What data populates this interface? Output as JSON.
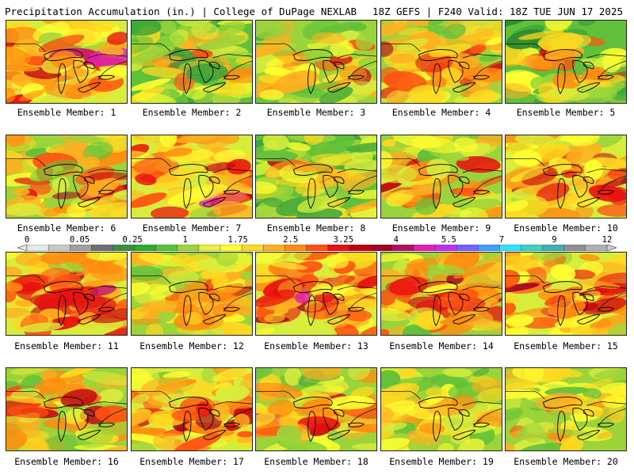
{
  "header": {
    "title": "Precipitation Accumulation (in.) | College of DuPage NEXLAB",
    "run_info": "18Z GEFS | F240 Valid: 18Z TUE JUN 17 2025"
  },
  "colorbar": {
    "ticks": [
      "0",
      "0.05",
      "0.25",
      "1",
      "1.75",
      "2.5",
      "3.25",
      "4",
      "5.5",
      "7",
      "9",
      "12"
    ],
    "colors": [
      "#e8e8e8",
      "#c8c8c8",
      "#a0a0a0",
      "#6e6e6e",
      "#3e8e3e",
      "#2faa2f",
      "#56c23a",
      "#9bd43a",
      "#e8f040",
      "#ffff30",
      "#ffd820",
      "#ffb020",
      "#ff8c10",
      "#ff5010",
      "#e81010",
      "#c00010",
      "#a00020",
      "#b01060",
      "#e020b0",
      "#c030f0",
      "#7860ff",
      "#40a0ff",
      "#30e0ff",
      "#40d0c0",
      "#40b0b0",
      "#909090",
      "#b0b0b0",
      "#d0d0d0"
    ]
  },
  "members": [
    {
      "label": "Ensemble Member: 1",
      "seed": 11,
      "bias": 0.78
    },
    {
      "label": "Ensemble Member: 2",
      "seed": 23,
      "bias": 0.48
    },
    {
      "label": "Ensemble Member: 3",
      "seed": 37,
      "bias": 0.55
    },
    {
      "label": "Ensemble Member: 4",
      "seed": 41,
      "bias": 0.62
    },
    {
      "label": "Ensemble Member: 5",
      "seed": 53,
      "bias": 0.42
    },
    {
      "label": "Ensemble Member: 6",
      "seed": 67,
      "bias": 0.66
    },
    {
      "label": "Ensemble Member: 7",
      "seed": 71,
      "bias": 0.8
    },
    {
      "label": "Ensemble Member: 8",
      "seed": 83,
      "bias": 0.44
    },
    {
      "label": "Ensemble Member: 9",
      "seed": 97,
      "bias": 0.62
    },
    {
      "label": "Ensemble Member: 10",
      "seed": 101,
      "bias": 0.74
    },
    {
      "label": "Ensemble Member: 11",
      "seed": 113,
      "bias": 0.76
    },
    {
      "label": "Ensemble Member: 12",
      "seed": 127,
      "bias": 0.64
    },
    {
      "label": "Ensemble Member: 13",
      "seed": 131,
      "bias": 0.82
    },
    {
      "label": "Ensemble Member: 14",
      "seed": 149,
      "bias": 0.68
    },
    {
      "label": "Ensemble Member: 15",
      "seed": 151,
      "bias": 0.74
    },
    {
      "label": "Ensemble Member: 16",
      "seed": 163,
      "bias": 0.66
    },
    {
      "label": "Ensemble Member: 17",
      "seed": 173,
      "bias": 0.7
    },
    {
      "label": "Ensemble Member: 18",
      "seed": 181,
      "bias": 0.6
    },
    {
      "label": "Ensemble Member: 19",
      "seed": 191,
      "bias": 0.5
    },
    {
      "label": "Ensemble Member: 20",
      "seed": 197,
      "bias": 0.56
    }
  ]
}
